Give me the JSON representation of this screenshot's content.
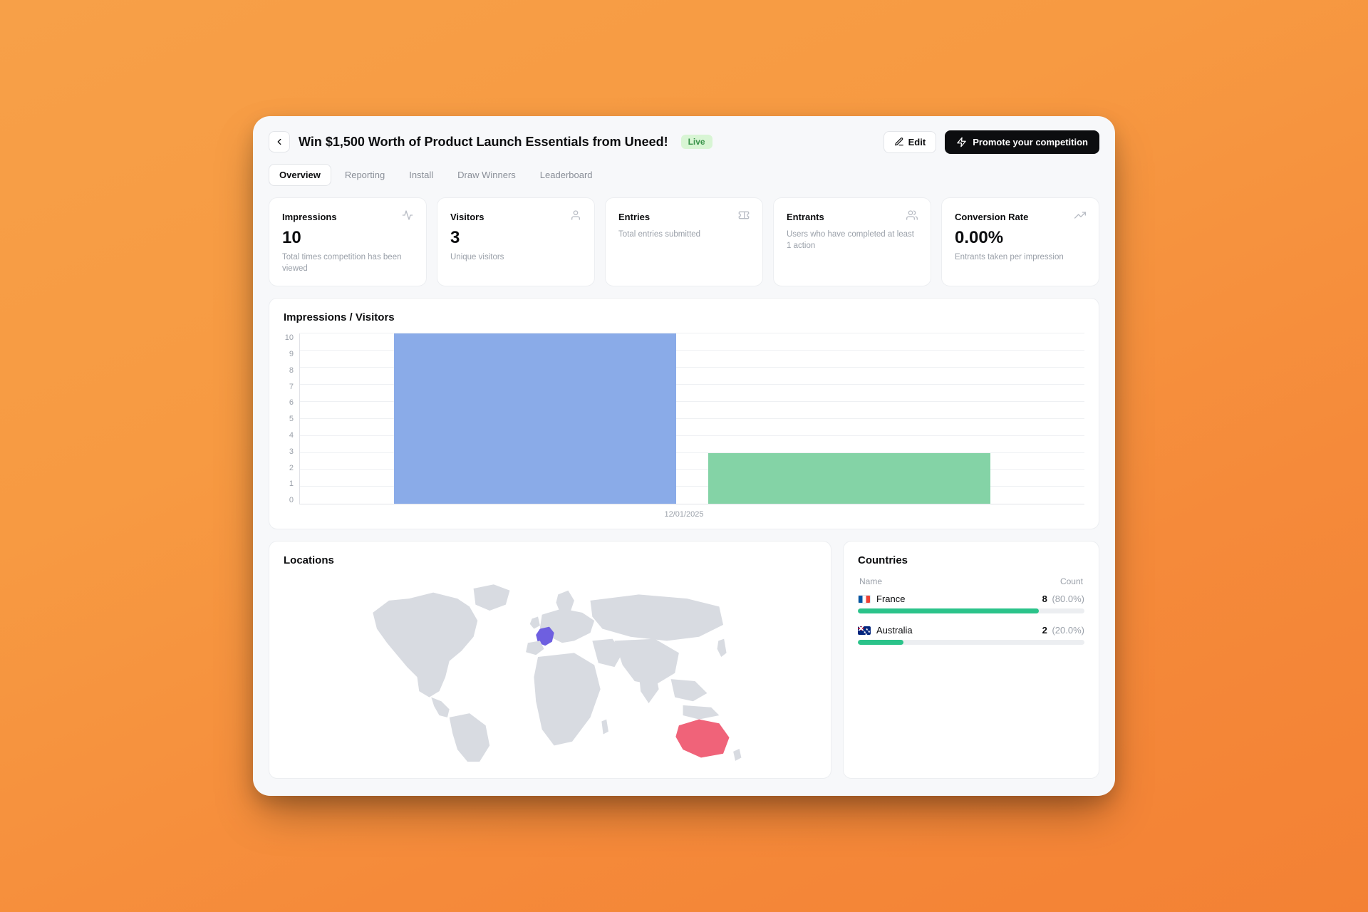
{
  "header": {
    "title": "Win $1,500 Worth of Product Launch Essentials from Uneed!",
    "status_label": "Live",
    "status_color": "#d8f5d4",
    "status_text_color": "#39924a",
    "edit_label": "Edit",
    "promote_label": "Promote your competition"
  },
  "tabs": {
    "items": [
      "Overview",
      "Reporting",
      "Install",
      "Draw Winners",
      "Leaderboard"
    ],
    "active_index": 0
  },
  "stats": {
    "impressions": {
      "label": "Impressions",
      "value": "10",
      "desc": "Total times competition has been viewed"
    },
    "visitors": {
      "label": "Visitors",
      "value": "3",
      "desc": "Unique visitors"
    },
    "entries": {
      "label": "Entries",
      "value": "",
      "desc": "Total entries submitted"
    },
    "entrants": {
      "label": "Entrants",
      "value": "",
      "desc": "Users who have completed at least 1 action"
    },
    "conversion": {
      "label": "Conversion Rate",
      "value": "0.00%",
      "desc": "Entrants taken per impression"
    }
  },
  "chart": {
    "title": "Impressions / Visitors",
    "type": "bar",
    "x_label": "12/01/2025",
    "ylim": [
      0,
      10
    ],
    "ytick_step": 1,
    "background_color": "#ffffff",
    "grid_color": "#eef0f3",
    "axis_color": "#e0e2e7",
    "label_color": "#9aa0a9",
    "label_fontsize": 11,
    "bars": [
      {
        "name": "Impressions",
        "value": 10,
        "color": "#8aabe8",
        "left_pct": 12,
        "width_pct": 36
      },
      {
        "name": "Visitors",
        "value": 3,
        "color": "#84d3a6",
        "left_pct": 52,
        "width_pct": 36
      }
    ]
  },
  "locations": {
    "title": "Locations",
    "map_default_fill": "#d8dbe1",
    "highlights": [
      {
        "country": "France",
        "fill": "#6e5fe0"
      },
      {
        "country": "Australia",
        "fill": "#f06379"
      }
    ]
  },
  "countries": {
    "title": "Countries",
    "columns": [
      "Name",
      "Count"
    ],
    "bar_color": "#2bc38a",
    "bar_bg_color": "#eceef1",
    "rows": [
      {
        "flag": "fr",
        "name": "France",
        "count": "8",
        "pct_label": "(80.0%)",
        "pct_value": 80
      },
      {
        "flag": "au",
        "name": "Australia",
        "count": "2",
        "pct_label": "(20.0%)",
        "pct_value": 20
      }
    ]
  }
}
